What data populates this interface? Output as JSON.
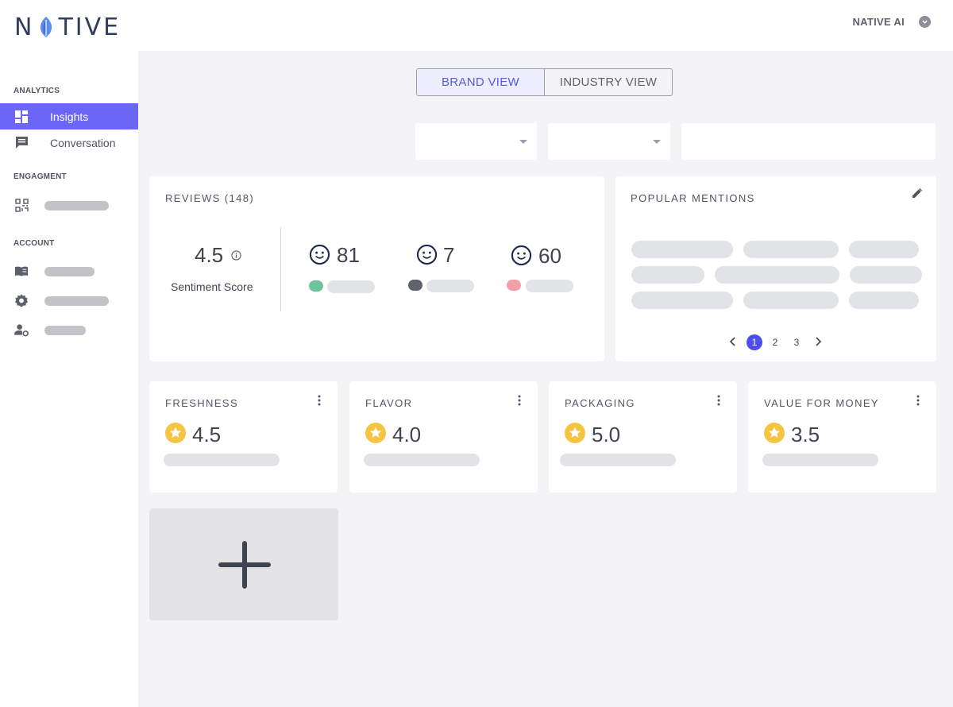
{
  "header": {
    "logo_text_before": "N",
    "logo_text_after": "TIVE",
    "user_name": "NATIVE AI"
  },
  "sidebar": {
    "sections": [
      {
        "title": "ANALYTICS"
      },
      {
        "title": "ENGAGMENT"
      },
      {
        "title": "ACCOUNT"
      }
    ],
    "items": [
      {
        "label": "Insights",
        "icon": "dashboard-icon",
        "active": true
      },
      {
        "label": "Conversation",
        "icon": "chat-icon",
        "active": false
      },
      {
        "label": "",
        "icon": "qr-code-icon"
      },
      {
        "label": "",
        "icon": "book-icon"
      },
      {
        "label": "",
        "icon": "gear-icon"
      },
      {
        "label": "",
        "icon": "user-settings-icon"
      }
    ]
  },
  "view_toggle": {
    "brand": "BRAND VIEW",
    "industry": "INDUSTRY VIEW",
    "selected": "BRAND VIEW"
  },
  "reviews": {
    "title": "REVIEWS (148)",
    "score": "4.5",
    "score_label": "Sentiment Score",
    "counts": [
      {
        "value": "81",
        "color": "#6cc49b"
      },
      {
        "value": "7",
        "color": "#5f636b"
      },
      {
        "value": "60",
        "color": "#f2a0a8"
      }
    ]
  },
  "popular_mentions": {
    "title": "POPULAR MENTIONS",
    "pages": [
      "1",
      "2",
      "3"
    ],
    "current_page": "1"
  },
  "metrics": [
    {
      "title": "FRESHNESS",
      "value": "4.5"
    },
    {
      "title": "FLAVOR",
      "value": "4.0"
    },
    {
      "title": "PACKAGING",
      "value": "5.0"
    },
    {
      "title": "VALUE FOR MONEY",
      "value": "3.5"
    }
  ],
  "colors": {
    "accent": "#6b66f6",
    "star": "#f5c542",
    "page_active": "#4c4cf0"
  }
}
